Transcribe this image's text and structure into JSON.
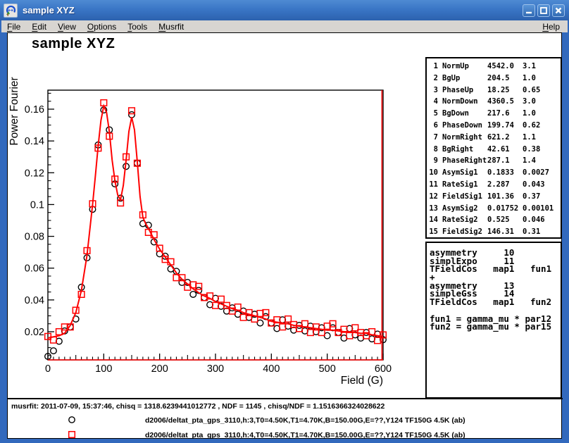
{
  "window": {
    "title": "sample XYZ",
    "buttons": {
      "minimize": "minimize",
      "maximize": "maximize",
      "close": "close"
    }
  },
  "menu": {
    "items": [
      "File",
      "Edit",
      "View",
      "Options",
      "Tools",
      "Musrfit"
    ],
    "help": "Help"
  },
  "plot": {
    "title": "sample XYZ"
  },
  "chart_data": {
    "type": "scatter",
    "title": "sample XYZ",
    "xlabel": "Field (G)",
    "ylabel": "Power Fourier",
    "xlim": [
      0,
      600
    ],
    "ylim": [
      0.002,
      0.172
    ],
    "grid": false,
    "x_ticks": [
      {
        "v": 0,
        "label": "0"
      },
      {
        "v": 100,
        "label": "100"
      },
      {
        "v": 200,
        "label": "200"
      },
      {
        "v": 300,
        "label": "300"
      },
      {
        "v": 400,
        "label": "400"
      },
      {
        "v": 500,
        "label": "500"
      },
      {
        "v": 600,
        "label": "600"
      }
    ],
    "y_ticks": [
      {
        "v": 0.02,
        "label": "0.02"
      },
      {
        "v": 0.04,
        "label": "0.04"
      },
      {
        "v": 0.06,
        "label": "0.06"
      },
      {
        "v": 0.08,
        "label": "0.08"
      },
      {
        "v": 0.1,
        "label": "0.1"
      },
      {
        "v": 0.12,
        "label": "0.12"
      },
      {
        "v": 0.14,
        "label": "0.14"
      },
      {
        "v": 0.16,
        "label": "0.16"
      }
    ],
    "series": [
      {
        "name": "d2006/deltat_pta_gps_3110,h:3,T0=4.50K,T1=4.70K,B=150.00G,E=??,Y124 TF150G 4.5K (ab)",
        "marker": "circle",
        "color": "#000000",
        "points": [
          [
            0,
            0.0045
          ],
          [
            10,
            0.008
          ],
          [
            20,
            0.014
          ],
          [
            30,
            0.0205
          ],
          [
            40,
            0.023
          ],
          [
            50,
            0.028
          ],
          [
            60,
            0.048
          ],
          [
            70,
            0.0665
          ],
          [
            80,
            0.097
          ],
          [
            90,
            0.1375
          ],
          [
            100,
            0.1595
          ],
          [
            110,
            0.147
          ],
          [
            120,
            0.113
          ],
          [
            130,
            0.104
          ],
          [
            140,
            0.124
          ],
          [
            150,
            0.1565
          ],
          [
            160,
            0.126
          ],
          [
            170,
            0.088
          ],
          [
            180,
            0.087
          ],
          [
            190,
            0.0765
          ],
          [
            200,
            0.069
          ],
          [
            210,
            0.0675
          ],
          [
            220,
            0.0595
          ],
          [
            230,
            0.058
          ],
          [
            240,
            0.051
          ],
          [
            250,
            0.051
          ],
          [
            260,
            0.0435
          ],
          [
            270,
            0.046
          ],
          [
            280,
            0.0415
          ],
          [
            290,
            0.037
          ],
          [
            300,
            0.041
          ],
          [
            310,
            0.036
          ],
          [
            320,
            0.033
          ],
          [
            330,
            0.035
          ],
          [
            340,
            0.031
          ],
          [
            350,
            0.033
          ],
          [
            360,
            0.029
          ],
          [
            370,
            0.031
          ],
          [
            380,
            0.0255
          ],
          [
            390,
            0.0295
          ],
          [
            400,
            0.0255
          ],
          [
            410,
            0.022
          ],
          [
            420,
            0.0275
          ],
          [
            430,
            0.0235
          ],
          [
            440,
            0.021
          ],
          [
            450,
            0.024
          ],
          [
            460,
            0.0205
          ],
          [
            470,
            0.0235
          ],
          [
            480,
            0.02
          ],
          [
            490,
            0.0225
          ],
          [
            500,
            0.0175
          ],
          [
            510,
            0.0225
          ],
          [
            520,
            0.0195
          ],
          [
            530,
            0.016
          ],
          [
            540,
            0.022
          ],
          [
            550,
            0.018
          ],
          [
            560,
            0.016
          ],
          [
            570,
            0.0195
          ],
          [
            580,
            0.0155
          ],
          [
            590,
            0.0185
          ],
          [
            600,
            0.015
          ]
        ]
      },
      {
        "name": "d2006/deltat_pta_gps_3110,h:4,T0=4.50K,T1=4.70K,B=150.00G,E=??,Y124 TF150G 4.5K (ab)",
        "marker": "square",
        "color": "#ff0000",
        "points": [
          [
            0,
            0.017
          ],
          [
            10,
            0.0148
          ],
          [
            20,
            0.02
          ],
          [
            30,
            0.023
          ],
          [
            40,
            0.023
          ],
          [
            50,
            0.0335
          ],
          [
            60,
            0.0435
          ],
          [
            70,
            0.071
          ],
          [
            80,
            0.1005
          ],
          [
            90,
            0.1355
          ],
          [
            100,
            0.164
          ],
          [
            110,
            0.143
          ],
          [
            120,
            0.116
          ],
          [
            130,
            0.101
          ],
          [
            140,
            0.13
          ],
          [
            150,
            0.159
          ],
          [
            160,
            0.126
          ],
          [
            170,
            0.0935
          ],
          [
            180,
            0.0825
          ],
          [
            190,
            0.081
          ],
          [
            200,
            0.0725
          ],
          [
            210,
            0.0655
          ],
          [
            220,
            0.064
          ],
          [
            230,
            0.054
          ],
          [
            240,
            0.054
          ],
          [
            250,
            0.048
          ],
          [
            260,
            0.0495
          ],
          [
            270,
            0.0485
          ],
          [
            280,
            0.0415
          ],
          [
            290,
            0.0425
          ],
          [
            300,
            0.0365
          ],
          [
            310,
            0.0405
          ],
          [
            320,
            0.0365
          ],
          [
            330,
            0.033
          ],
          [
            340,
            0.0355
          ],
          [
            350,
            0.029
          ],
          [
            360,
            0.032
          ],
          [
            370,
            0.028
          ],
          [
            380,
            0.0315
          ],
          [
            390,
            0.032
          ],
          [
            400,
            0.0255
          ],
          [
            410,
            0.0275
          ],
          [
            420,
            0.023
          ],
          [
            430,
            0.028
          ],
          [
            440,
            0.0245
          ],
          [
            450,
            0.022
          ],
          [
            460,
            0.025
          ],
          [
            470,
            0.0195
          ],
          [
            480,
            0.023
          ],
          [
            490,
            0.0195
          ],
          [
            500,
            0.0235
          ],
          [
            510,
            0.025
          ],
          [
            520,
            0.0195
          ],
          [
            530,
            0.0215
          ],
          [
            540,
            0.0175
          ],
          [
            550,
            0.0225
          ],
          [
            560,
            0.0195
          ],
          [
            570,
            0.0175
          ],
          [
            580,
            0.02
          ],
          [
            590,
            0.0145
          ],
          [
            600,
            0.018
          ]
        ]
      },
      {
        "name": "fit",
        "type": "line",
        "color": "#ff0000",
        "points": [
          [
            0,
            0.016
          ],
          [
            10,
            0.0168
          ],
          [
            20,
            0.0175
          ],
          [
            30,
            0.019
          ],
          [
            40,
            0.024
          ],
          [
            50,
            0.032
          ],
          [
            60,
            0.046
          ],
          [
            70,
            0.068
          ],
          [
            80,
            0.1
          ],
          [
            85,
            0.118
          ],
          [
            90,
            0.137
          ],
          [
            95,
            0.153
          ],
          [
            100,
            0.162
          ],
          [
            105,
            0.158
          ],
          [
            110,
            0.146
          ],
          [
            115,
            0.128
          ],
          [
            120,
            0.115
          ],
          [
            125,
            0.106
          ],
          [
            130,
            0.103
          ],
          [
            135,
            0.112
          ],
          [
            140,
            0.128
          ],
          [
            145,
            0.146
          ],
          [
            150,
            0.155
          ],
          [
            155,
            0.147
          ],
          [
            160,
            0.127
          ],
          [
            165,
            0.105
          ],
          [
            170,
            0.092
          ],
          [
            175,
            0.088
          ],
          [
            180,
            0.085
          ],
          [
            190,
            0.078
          ],
          [
            200,
            0.072
          ],
          [
            210,
            0.067
          ],
          [
            220,
            0.062
          ],
          [
            230,
            0.057
          ],
          [
            240,
            0.053
          ],
          [
            250,
            0.05
          ],
          [
            260,
            0.047
          ],
          [
            270,
            0.0445
          ],
          [
            280,
            0.0425
          ],
          [
            290,
            0.041
          ],
          [
            300,
            0.039
          ],
          [
            310,
            0.0375
          ],
          [
            320,
            0.036
          ],
          [
            330,
            0.0345
          ],
          [
            340,
            0.0335
          ],
          [
            350,
            0.032
          ],
          [
            360,
            0.031
          ],
          [
            370,
            0.03
          ],
          [
            380,
            0.029
          ],
          [
            390,
            0.028
          ],
          [
            400,
            0.0265
          ],
          [
            410,
            0.026
          ],
          [
            420,
            0.0255
          ],
          [
            430,
            0.025
          ],
          [
            440,
            0.024
          ],
          [
            450,
            0.0235
          ],
          [
            460,
            0.023
          ],
          [
            470,
            0.0225
          ],
          [
            480,
            0.022
          ],
          [
            490,
            0.0215
          ],
          [
            500,
            0.021
          ],
          [
            510,
            0.021
          ],
          [
            520,
            0.0205
          ],
          [
            530,
            0.02
          ],
          [
            540,
            0.02
          ],
          [
            550,
            0.0195
          ],
          [
            560,
            0.019
          ],
          [
            570,
            0.019
          ],
          [
            580,
            0.018
          ],
          [
            590,
            0.0175
          ],
          [
            600,
            0.017
          ]
        ]
      }
    ]
  },
  "parameters": {
    "rows": [
      {
        "num": "1",
        "name": "NormUp",
        "value": "4542.0",
        "error": "3.1"
      },
      {
        "num": "2",
        "name": "BgUp",
        "value": "204.5",
        "error": "1.0"
      },
      {
        "num": "3",
        "name": "PhaseUp",
        "value": "18.25",
        "error": "0.65"
      },
      {
        "num": "4",
        "name": "NormDown",
        "value": "4360.5",
        "error": "3.0"
      },
      {
        "num": "5",
        "name": "BgDown",
        "value": "217.6",
        "error": "1.0"
      },
      {
        "num": "6",
        "name": "PhaseDown",
        "value": "199.74",
        "error": "0.62"
      },
      {
        "num": "7",
        "name": "NormRight",
        "value": "621.2",
        "error": "1.1"
      },
      {
        "num": "8",
        "name": "BgRight",
        "value": "42.61",
        "error": "0.38"
      },
      {
        "num": "9",
        "name": "PhaseRight",
        "value": "287.1",
        "error": "1.4"
      },
      {
        "num": "10",
        "name": "AsymSig1",
        "value": "0.1833",
        "error": "0.0027"
      },
      {
        "num": "11",
        "name": "RateSig1",
        "value": "2.287",
        "error": "0.043"
      },
      {
        "num": "12",
        "name": "FieldSig1",
        "value": "101.36",
        "error": "0.37"
      },
      {
        "num": "13",
        "name": "AsymSig2",
        "value": "0.01752",
        "error": "0.00101"
      },
      {
        "num": "14",
        "name": "RateSig2",
        "value": "0.525",
        "error": "0.046"
      },
      {
        "num": "15",
        "name": "FieldSig2",
        "value": "146.31",
        "error": "0.31"
      }
    ]
  },
  "theory": {
    "lines": [
      "asymmetry     10",
      "simplExpo     11",
      "TFieldCos   map1   fun1",
      "+",
      "asymmetry     13",
      "simpleGss     14",
      "TFieldCos   map1   fun2",
      "",
      "fun1 = gamma_mu * par12",
      "fun2 = gamma_mu * par15"
    ]
  },
  "footer": {
    "status": "musrfit: 2011-07-09, 15:37:46, chisq = 1318.6239441012772 , NDF = 1145 , chisq/NDF = 1.1516366324028622",
    "legend": [
      {
        "marker": "circle",
        "color": "#000000",
        "label": "d2006/deltat_pta_gps_3110,h:3,T0=4.50K,T1=4.70K,B=150.00G,E=??,Y124 TF150G 4.5K (ab)"
      },
      {
        "marker": "square",
        "color": "#ff0000",
        "label": "d2006/deltat_pta_gps_3110,h:4,T0=4.50K,T1=4.70K,B=150.00G,E=??,Y124 TF150G 4.5K (ab)"
      }
    ]
  }
}
